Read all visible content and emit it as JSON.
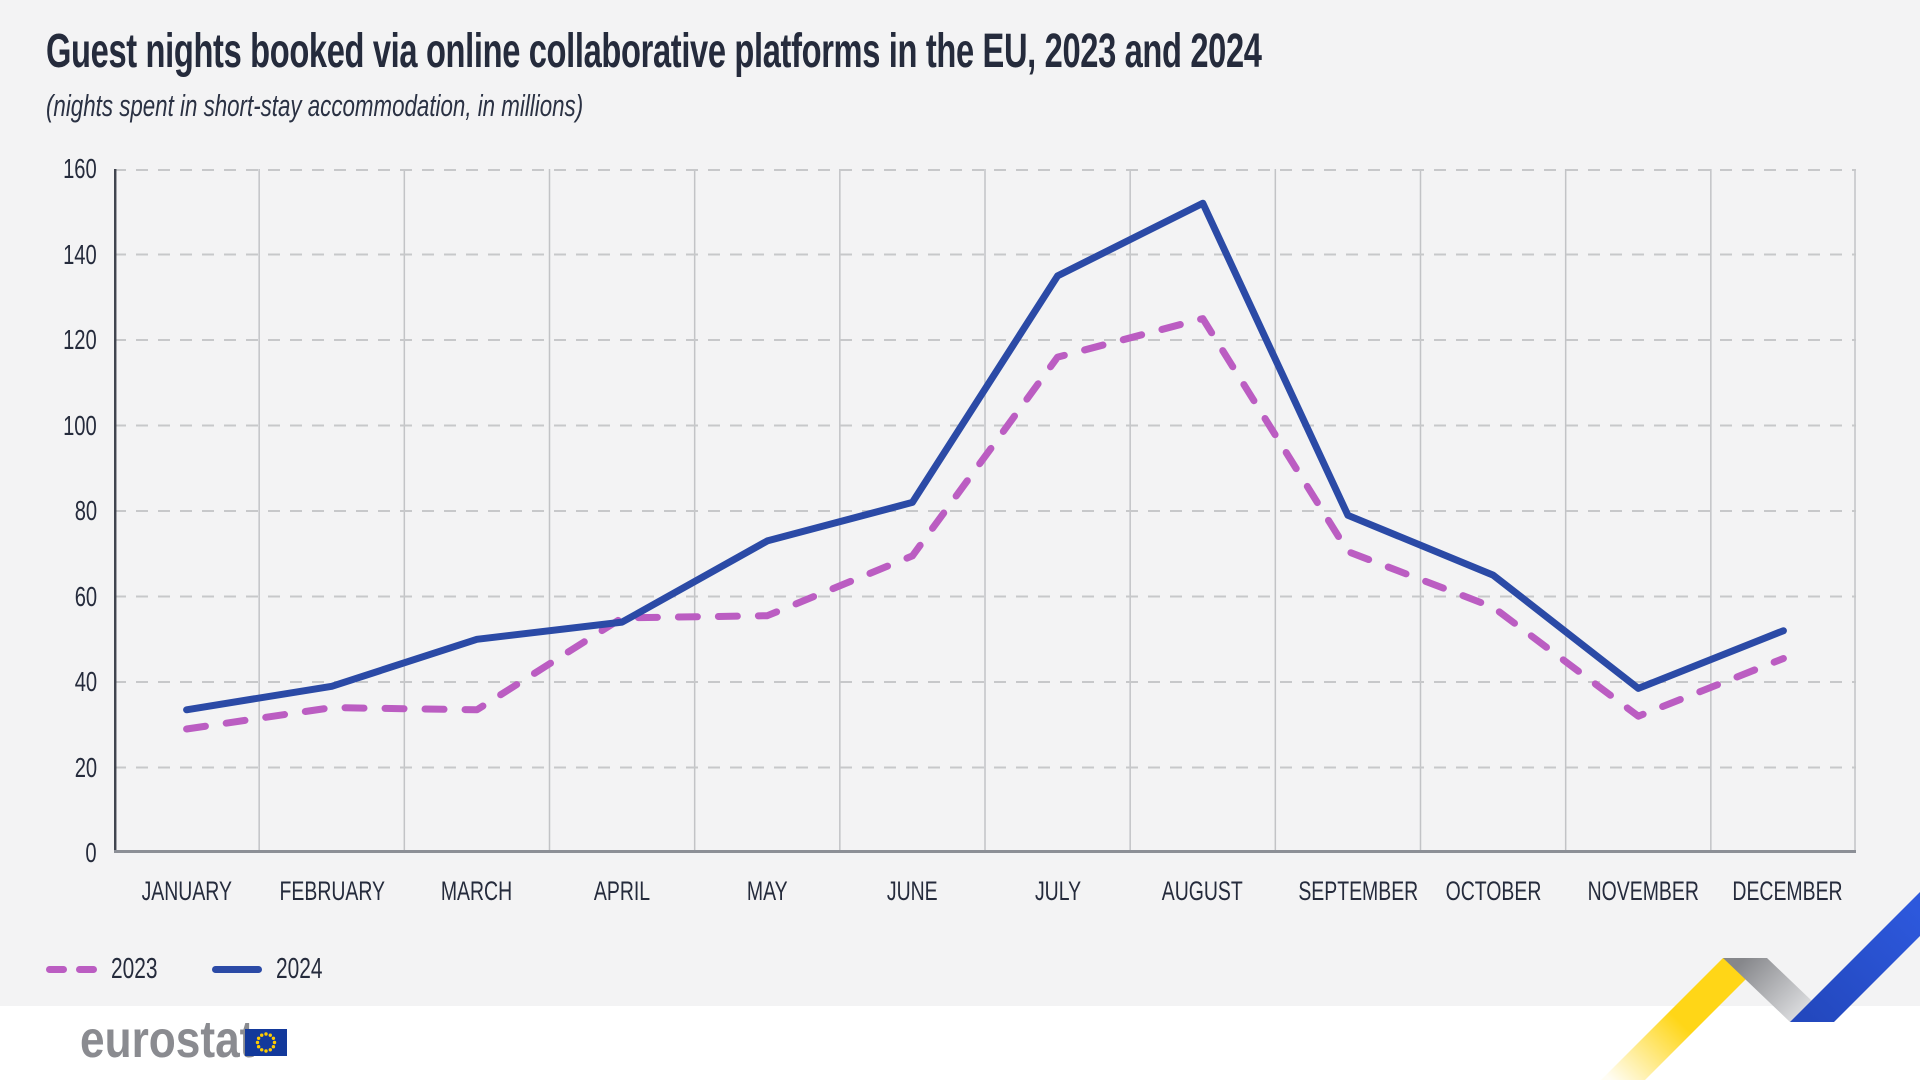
{
  "header": {
    "title": "Guest nights booked via online collaborative platforms in the EU, 2023 and 2024",
    "subtitle": "(nights spent in short-stay accommodation, in millions)"
  },
  "legend": {
    "items": [
      {
        "label": "2023",
        "style": "dashed",
        "color": "#bb5dc2"
      },
      {
        "label": "2024",
        "style": "solid",
        "color": "#2b4aa6"
      }
    ],
    "position": "bottom-left"
  },
  "chart_data": {
    "type": "line",
    "categories": [
      "JANUARY",
      "FEBRUARY",
      "MARCH",
      "APRIL",
      "MAY",
      "JUNE",
      "JULY",
      "AUGUST",
      "SEPTEMBER",
      "OCTOBER",
      "NOVEMBER",
      "DECEMBER"
    ],
    "series": [
      {
        "name": "2023",
        "style": "dashed",
        "color": "#bb5dc2",
        "values": [
          29,
          34,
          33.5,
          55,
          55.5,
          69.5,
          116,
          125,
          70.5,
          57.5,
          32,
          45.5
        ]
      },
      {
        "name": "2024",
        "style": "solid",
        "color": "#2b4aa6",
        "values": [
          33.5,
          39,
          50,
          54,
          73,
          82,
          135,
          152,
          79,
          65,
          38.5,
          52
        ]
      }
    ],
    "title": "Guest nights booked via online collaborative platforms in the EU, 2023 and 2024",
    "xlabel": "",
    "ylabel": "nights spent in short-stay accommodation, in millions",
    "ylim": [
      0,
      160
    ],
    "ytick_step": 20,
    "grid": {
      "horizontal": "dashed",
      "vertical": "solid"
    },
    "legend_position": "bottom-left"
  },
  "footer": {
    "brand": "eurostat"
  },
  "colors": {
    "background": "#f3f3f4",
    "footer_background": "#ffffff",
    "text": "#252b3c",
    "grid_h": "#c7c8ca",
    "grid_v": "#c2c3c6",
    "y_axis": "#41454f",
    "x_axis": "#8c8f96",
    "series_2023": "#bb5dc2",
    "series_2024": "#2b4aa6",
    "ribbon_yellow": "#ffd617",
    "ribbon_gray": "#97989a",
    "ribbon_blue": "#2a52ce",
    "eu_flag_blue": "#13399b",
    "eu_star_yellow": "#ffcc00",
    "logo_gray": "#8a8b90"
  }
}
